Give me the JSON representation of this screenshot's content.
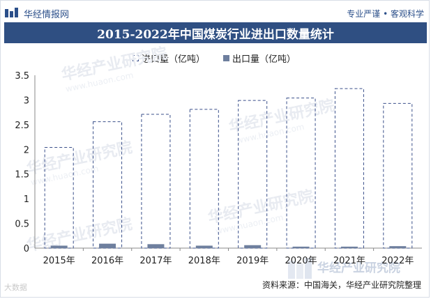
{
  "header": {
    "brand": "华经情报网",
    "tagline": "专业严谨 • 客观科学"
  },
  "chart_title": "2015-2022年中国煤炭行业进出口数量统计",
  "legend": {
    "import": "进口量（亿吨）",
    "export": "出口量（亿吨）"
  },
  "source": "资料来源：中国海关，华经产业研究院整理",
  "watermark": {
    "center": "华经产业研究院",
    "url": "www.huaon.com",
    "badge": "华经产业研究院",
    "corner": "大数据"
  },
  "colors": {
    "title_bg": "#2f4f82",
    "import_stroke": "#3a4f8a",
    "export_fill": "#6e7f9e"
  },
  "chart_data": {
    "type": "bar",
    "title": "2015-2022年中国煤炭行业进出口数量统计",
    "categories": [
      "2015年",
      "2016年",
      "2017年",
      "2018年",
      "2019年",
      "2020年",
      "2021年",
      "2022年"
    ],
    "series": [
      {
        "name": "进口量（亿吨）",
        "values": [
          2.04,
          2.56,
          2.71,
          2.81,
          2.99,
          3.04,
          3.23,
          2.93
        ]
      },
      {
        "name": "出口量（亿吨）",
        "values": [
          0.05,
          0.09,
          0.08,
          0.05,
          0.06,
          0.03,
          0.03,
          0.04
        ]
      }
    ],
    "yticks": [
      "0",
      "0.5",
      "1",
      "1.5",
      "2",
      "2.5",
      "3",
      "3.5"
    ],
    "ylim": [
      0,
      3.5
    ],
    "grid": false,
    "legend_position": "top"
  }
}
